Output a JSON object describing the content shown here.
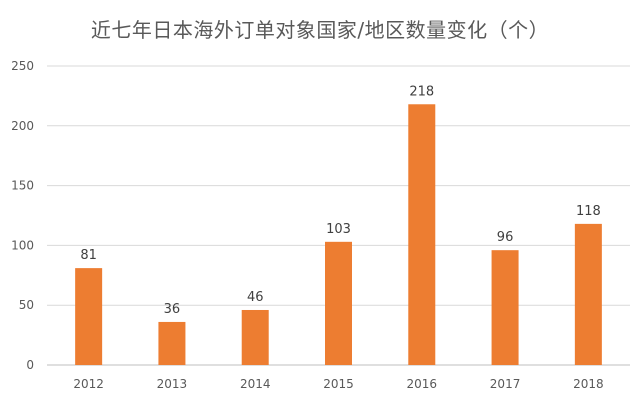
{
  "chart_data": {
    "type": "bar",
    "title": "近七年日本海外订单对象国家/地区数量变化（个）",
    "xlabel": "",
    "ylabel": "",
    "categories": [
      "2012",
      "2013",
      "2014",
      "2015",
      "2016",
      "2017",
      "2018"
    ],
    "values": [
      81,
      36,
      46,
      103,
      218,
      96,
      118
    ],
    "ylim": [
      0,
      250
    ],
    "yticks": [
      0,
      50,
      100,
      150,
      200,
      250
    ],
    "grid": true,
    "legend": "none",
    "bar_color": "#ED7D31",
    "data_labels": true
  }
}
